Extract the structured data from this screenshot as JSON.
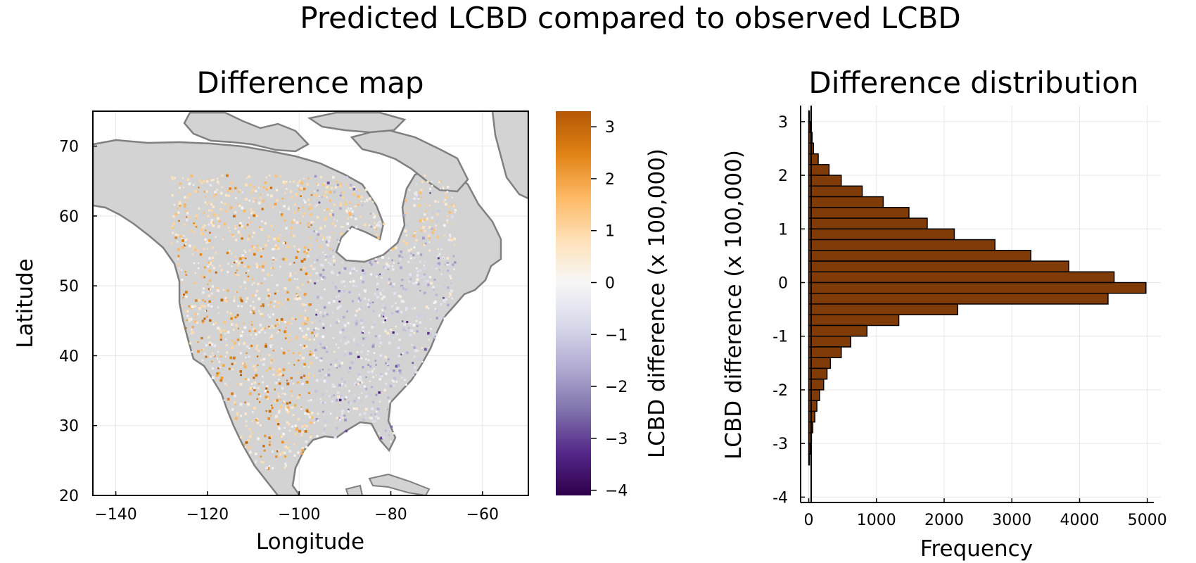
{
  "super_title": "Predicted LCBD compared to observed LCBD",
  "chart_data": [
    {
      "type": "heatmap",
      "title": "Difference map",
      "xlabel": "Longitude",
      "ylabel": "Latitude",
      "xlim": [
        -145,
        -50
      ],
      "ylim": [
        20,
        75
      ],
      "x_ticks": [
        -140,
        -120,
        -100,
        -80,
        -60
      ],
      "y_ticks": [
        20,
        30,
        40,
        50,
        60,
        70
      ],
      "grid": true,
      "colorbar": {
        "label": "LCBD difference (x 100,000)",
        "range": [
          -4.1,
          3.3
        ],
        "ticks": [
          3,
          2,
          1,
          0,
          -1,
          -2,
          -3,
          -4
        ],
        "colors": [
          "#2d004b",
          "#542788",
          "#8073ac",
          "#b2abd2",
          "#d8daeb",
          "#f7f7f7",
          "#fee0b6",
          "#fdb863",
          "#e08214",
          "#b35806"
        ]
      },
      "land_color": "#d3d3d3",
      "coast_color": "#808080"
    },
    {
      "type": "bar",
      "orientation": "horizontal",
      "title": "Difference distribution",
      "xlabel": "Frequency",
      "ylabel": "LCBD difference (x 100,000)",
      "xlim": [
        -120,
        5200
      ],
      "ylim": [
        -4.1,
        3.3
      ],
      "x_ticks": [
        0,
        1000,
        2000,
        3000,
        4000,
        5000
      ],
      "y_ticks": [
        3,
        2,
        1,
        0,
        -1,
        -2,
        -3,
        -4
      ],
      "y_tick_labels": [
        "3",
        "2",
        "1",
        "0",
        "-1",
        "-2",
        "-3",
        "-4"
      ],
      "bin_width": 0.2,
      "bins_start": [
        3.0,
        2.8,
        2.6,
        2.4,
        2.2,
        2.0,
        1.8,
        1.6,
        1.4,
        1.2,
        1.0,
        0.8,
        0.6,
        0.4,
        0.2,
        0.0,
        -0.2,
        -0.4,
        -0.6,
        -0.8,
        -1.0,
        -1.2,
        -1.4,
        -1.6,
        -1.8,
        -2.0,
        -2.2,
        -2.4,
        -2.6,
        -2.8,
        -3.0,
        -3.2,
        -3.4
      ],
      "values": [
        8,
        20,
        50,
        70,
        140,
        300,
        480,
        790,
        1100,
        1480,
        1750,
        2150,
        2750,
        3280,
        3840,
        4510,
        4980,
        4420,
        2200,
        1330,
        860,
        620,
        480,
        320,
        270,
        220,
        160,
        120,
        90,
        60,
        40,
        20,
        8
      ],
      "bar_color": "#7f3b08",
      "grid": true
    }
  ]
}
